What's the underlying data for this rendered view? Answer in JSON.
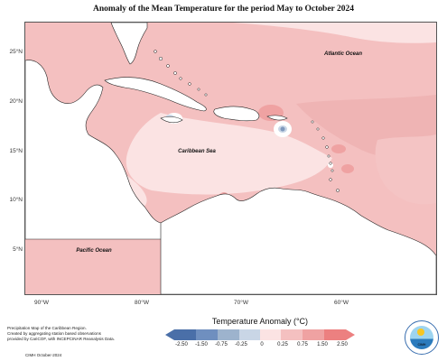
{
  "title": "Anomaly of the Mean Temperature for the period May to October 2024",
  "map": {
    "region": "Caribbean",
    "labels": {
      "atlantic": "Atlantic Ocean",
      "caribbean": "Caribbean Sea",
      "pacific": "Pacific Ocean"
    },
    "lat_ticks": [
      "25°N",
      "20°N",
      "15°N",
      "10°N",
      "5°N"
    ],
    "lon_ticks": [
      "90°W",
      "80°W",
      "70°W",
      "60°W"
    ],
    "colors": {
      "land_background": "#ffffff",
      "anomaly_0_25": "#fbe3e3",
      "anomaly_0_75": "#f4c0c0",
      "anomaly_1_50": "#efa2a2",
      "anomaly_2_50": "#ec8080",
      "cool_neg_0_25": "#c9d6e6",
      "cool_neg_0_75": "#9db3cd"
    }
  },
  "legend": {
    "title": "Temperature Anomaly (°C)",
    "ticks": [
      "-2.50",
      "-1.50",
      "-0.75",
      "-0.25",
      "0",
      "0.25",
      "0.75",
      "1.50",
      "2.50"
    ],
    "colors": [
      "#4a6fa8",
      "#6f8fbf",
      "#9db3cd",
      "#c9d6e6",
      "#ffffff",
      "#fbe3e3",
      "#f4c0c0",
      "#efa2a2",
      "#ec8080"
    ]
  },
  "footer": {
    "line1": "Precipitation Map of the Caribbean Region.",
    "line2": "Created by aggregating station based observations",
    "line3": "provided by CariCOF, with INCEPCINAR Reanalysis Data.",
    "date": "CIMH October-2024"
  },
  "logo": {
    "text": "CIMH"
  }
}
